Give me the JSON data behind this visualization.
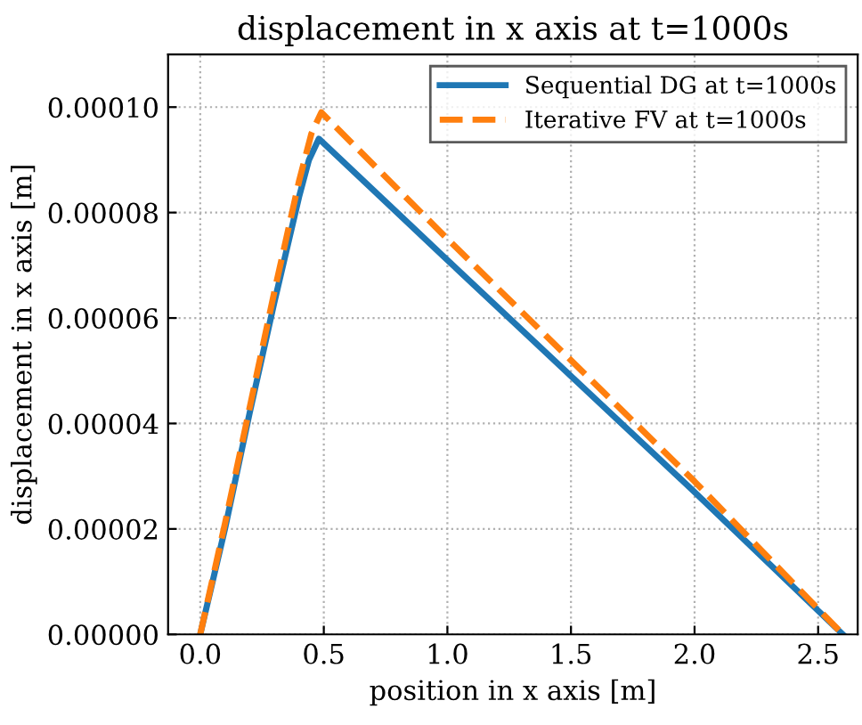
{
  "chart_data": {
    "type": "line",
    "title": "displacement in x axis at t=1000s",
    "xlabel": "position in x axis [m]",
    "ylabel": "displacement in x axis [m]",
    "xlim": [
      -0.13,
      2.66
    ],
    "ylim": [
      0,
      0.00011
    ],
    "xticks": [
      {
        "value": 0,
        "label": "0.0"
      },
      0.5,
      {
        "value": 1,
        "label": "1.0"
      },
      1.5,
      {
        "value": 2,
        "label": "2.0"
      },
      2.5
    ],
    "yticks": [
      {
        "value": 0,
        "label": "0.00000"
      },
      {
        "value": 2e-05,
        "label": "0.00002"
      },
      {
        "value": 4e-05,
        "label": "0.00004"
      },
      {
        "value": 6e-05,
        "label": "0.00006"
      },
      {
        "value": 8e-05,
        "label": "0.00008"
      },
      {
        "value": 0.0001,
        "label": "0.00010"
      }
    ],
    "grid": true,
    "legend": "top right",
    "series": [
      {
        "name": "Sequential DG at t=1000s",
        "color": "#1f77b4",
        "line_style": "solid",
        "x": [
          0,
          0.1,
          0.2,
          0.3,
          0.4,
          0.44,
          0.48,
          1.0,
          1.5,
          2.0,
          2.6
        ],
        "values": [
          0,
          2e-05,
          4.2e-05,
          6.3e-05,
          8.3e-05,
          9e-05,
          9.4e-05,
          7.1e-05,
          4.9e-05,
          2.7e-05,
          0
        ]
      },
      {
        "name": "Iterative FV at t=1000s",
        "color": "#ff7f0e",
        "line_style": "dashed",
        "x": [
          0,
          0.1,
          0.2,
          0.3,
          0.4,
          0.45,
          0.49,
          1.0,
          1.5,
          2.0,
          2.6
        ],
        "values": [
          0,
          2.1e-05,
          4.3e-05,
          6.5e-05,
          8.6e-05,
          9.5e-05,
          9.9e-05,
          7.5e-05,
          5.2e-05,
          2.9e-05,
          0
        ]
      }
    ]
  }
}
